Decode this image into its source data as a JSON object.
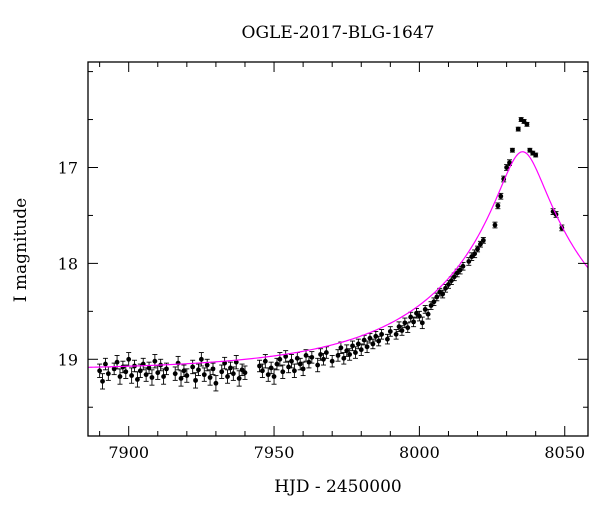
{
  "chart_data": {
    "type": "scatter",
    "title": "OGLE-2017-BLG-1647",
    "xlabel": "HJD - 2450000",
    "ylabel": "I magnitude",
    "xlim": [
      7886,
      8058
    ],
    "ylim": [
      19.8,
      15.9
    ],
    "y_inverted": true,
    "x_ticks": [
      7900,
      7950,
      8000,
      8050
    ],
    "y_ticks": [
      17,
      18,
      19
    ],
    "grid": false,
    "legend": "none",
    "colors": {
      "points": "#000000",
      "model": "#ff00ff"
    },
    "model": {
      "type": "paczynski",
      "t0": 8035.5,
      "tE": 60,
      "u0": 0.123,
      "source_mag": 19.117,
      "blend_fraction": 1.0
    },
    "series": [
      {
        "kind": "points_with_errorbars",
        "points": [
          [
            7890,
            19.12,
            0.07
          ],
          [
            7891,
            19.23,
            0.08
          ],
          [
            7892,
            19.05,
            0.06
          ],
          [
            7893,
            19.15,
            0.07
          ],
          [
            7895,
            19.1,
            0.06
          ],
          [
            7896,
            19.03,
            0.07
          ],
          [
            7897,
            19.18,
            0.08
          ],
          [
            7898,
            19.08,
            0.06
          ],
          [
            7899,
            19.13,
            0.07
          ],
          [
            7900,
            19.0,
            0.07
          ],
          [
            7901,
            19.17,
            0.08
          ],
          [
            7902,
            19.07,
            0.06
          ],
          [
            7903,
            19.21,
            0.08
          ],
          [
            7904,
            19.12,
            0.07
          ],
          [
            7905,
            19.05,
            0.06
          ],
          [
            7906,
            19.16,
            0.07
          ],
          [
            7907,
            19.09,
            0.06
          ],
          [
            7908,
            19.19,
            0.08
          ],
          [
            7909,
            19.02,
            0.07
          ],
          [
            7910,
            19.14,
            0.07
          ],
          [
            7911,
            19.06,
            0.06
          ],
          [
            7912,
            19.18,
            0.08
          ],
          [
            7913,
            19.1,
            0.06
          ],
          [
            7916,
            19.15,
            0.07
          ],
          [
            7917,
            19.04,
            0.07
          ],
          [
            7918,
            19.2,
            0.08
          ],
          [
            7919,
            19.12,
            0.06
          ],
          [
            7920,
            19.17,
            0.07
          ],
          [
            7922,
            19.08,
            0.07
          ],
          [
            7923,
            19.22,
            0.08
          ],
          [
            7924,
            19.11,
            0.06
          ],
          [
            7925,
            19.0,
            0.07
          ],
          [
            7926,
            19.16,
            0.07
          ],
          [
            7927,
            19.06,
            0.06
          ],
          [
            7928,
            19.19,
            0.08
          ],
          [
            7929,
            19.1,
            0.06
          ],
          [
            7930,
            19.25,
            0.08
          ],
          [
            7932,
            19.13,
            0.07
          ],
          [
            7933,
            19.04,
            0.06
          ],
          [
            7934,
            19.18,
            0.07
          ],
          [
            7935,
            19.09,
            0.06
          ],
          [
            7936,
            19.15,
            0.07
          ],
          [
            7937,
            19.03,
            0.07
          ],
          [
            7938,
            19.2,
            0.08
          ],
          [
            7939,
            19.11,
            0.06
          ],
          [
            7940,
            19.14,
            0.07
          ],
          [
            7945,
            19.07,
            0.06
          ],
          [
            7946,
            19.12,
            0.07
          ],
          [
            7947,
            19.02,
            0.07
          ],
          [
            7948,
            19.16,
            0.07
          ],
          [
            7949,
            19.09,
            0.06
          ],
          [
            7950,
            19.18,
            0.08
          ],
          [
            7951,
            19.05,
            0.06
          ],
          [
            7952,
            19.0,
            0.07
          ],
          [
            7953,
            19.13,
            0.07
          ],
          [
            7954,
            18.97,
            0.06
          ],
          [
            7955,
            19.08,
            0.06
          ],
          [
            7956,
            19.02,
            0.07
          ],
          [
            7957,
            19.12,
            0.07
          ],
          [
            7958,
            18.99,
            0.06
          ],
          [
            7959,
            19.05,
            0.06
          ],
          [
            7960,
            19.1,
            0.07
          ],
          [
            7961,
            18.96,
            0.06
          ],
          [
            7962,
            19.03,
            0.06
          ],
          [
            7963,
            18.98,
            0.06
          ],
          [
            7965,
            19.06,
            0.07
          ],
          [
            7966,
            18.95,
            0.06
          ],
          [
            7967,
            19.0,
            0.06
          ],
          [
            7968,
            18.93,
            0.06
          ],
          [
            7970,
            19.02,
            0.06
          ],
          [
            7972,
            18.96,
            0.06
          ],
          [
            7973,
            18.88,
            0.06
          ],
          [
            7974,
            18.99,
            0.06
          ],
          [
            7975,
            18.91,
            0.06
          ],
          [
            7976,
            18.95,
            0.06
          ],
          [
            7977,
            18.86,
            0.05
          ],
          [
            7978,
            18.93,
            0.06
          ],
          [
            7979,
            18.84,
            0.05
          ],
          [
            7980,
            18.9,
            0.06
          ],
          [
            7981,
            18.8,
            0.05
          ],
          [
            7982,
            18.87,
            0.06
          ],
          [
            7983,
            18.78,
            0.05
          ],
          [
            7984,
            18.84,
            0.05
          ],
          [
            7985,
            18.76,
            0.05
          ],
          [
            7986,
            18.81,
            0.05
          ],
          [
            7987,
            18.74,
            0.05
          ],
          [
            7989,
            18.79,
            0.05
          ],
          [
            7990,
            18.71,
            0.05
          ],
          [
            7992,
            18.74,
            0.05
          ],
          [
            7993,
            18.66,
            0.05
          ],
          [
            7994,
            18.7,
            0.05
          ],
          [
            7995,
            18.62,
            0.05
          ],
          [
            7996,
            18.67,
            0.05
          ],
          [
            7997,
            18.56,
            0.05
          ],
          [
            7998,
            18.61,
            0.05
          ],
          [
            7999,
            18.52,
            0.05
          ],
          [
            8000,
            18.55,
            0.05
          ],
          [
            8001,
            18.62,
            0.06
          ],
          [
            8002,
            18.48,
            0.04
          ],
          [
            8003,
            18.53,
            0.05
          ],
          [
            8004,
            18.44,
            0.04
          ],
          [
            8005,
            18.4,
            0.04
          ],
          [
            8006,
            18.35,
            0.04
          ],
          [
            8007,
            18.3,
            0.04
          ],
          [
            8008,
            18.32,
            0.04
          ],
          [
            8009,
            18.26,
            0.04
          ],
          [
            8010,
            18.22,
            0.04
          ],
          [
            8011,
            18.18,
            0.04
          ],
          [
            8012,
            18.14,
            0.04
          ],
          [
            8013,
            18.1,
            0.04
          ],
          [
            8014,
            18.07,
            0.04
          ],
          [
            8015,
            18.03,
            0.04
          ],
          [
            8017,
            17.98,
            0.04
          ],
          [
            8018,
            17.93,
            0.04
          ],
          [
            8019,
            17.9,
            0.04
          ],
          [
            8020,
            17.85,
            0.03
          ],
          [
            8021,
            17.8,
            0.03
          ],
          [
            8022,
            17.76,
            0.03
          ],
          [
            8026,
            17.6,
            0.03
          ],
          [
            8027,
            17.4,
            0.03
          ],
          [
            8028,
            17.3,
            0.03
          ],
          [
            8029,
            17.12,
            0.03
          ],
          [
            8030,
            17.0,
            0.03
          ],
          [
            8031,
            16.95,
            0.03
          ],
          [
            8032,
            16.82,
            0.02
          ],
          [
            8034,
            16.6,
            0.02
          ],
          [
            8035,
            16.5,
            0.02
          ],
          [
            8036,
            16.52,
            0.02
          ],
          [
            8037,
            16.55,
            0.02
          ],
          [
            8038,
            16.82,
            0.02
          ],
          [
            8039,
            16.85,
            0.02
          ],
          [
            8040,
            16.87,
            0.02
          ],
          [
            8046,
            17.46,
            0.03
          ],
          [
            8047,
            17.49,
            0.03
          ],
          [
            8049,
            17.63,
            0.03
          ]
        ]
      }
    ]
  }
}
